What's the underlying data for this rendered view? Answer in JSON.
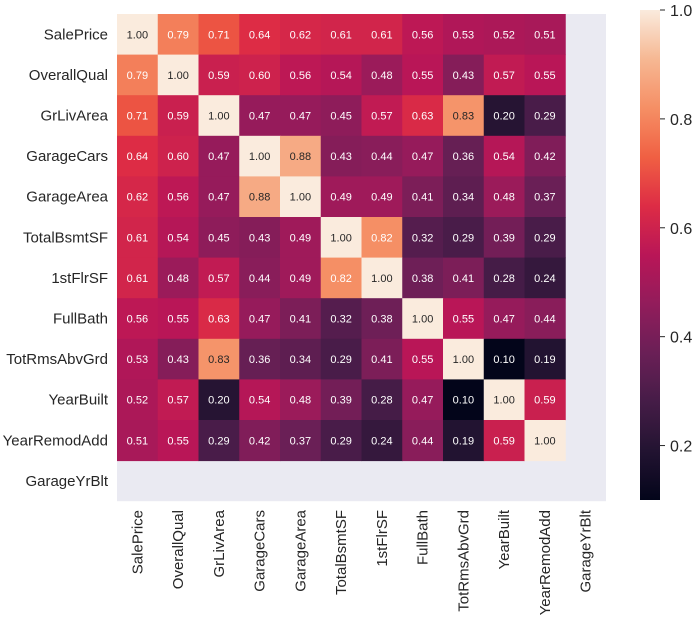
{
  "chart_data": {
    "type": "heatmap",
    "title": "",
    "colormap": "rocket",
    "vlim": [
      0.1,
      1.0
    ],
    "nan_color": "#eaeaf2",
    "colorbar_ticks": [
      "0.2",
      "0.4",
      "0.6",
      "0.8",
      "1.0"
    ],
    "colorbar_tick_values": [
      0.2,
      0.4,
      0.6,
      0.8,
      1.0
    ],
    "labels": [
      "SalePrice",
      "OverallQual",
      "GrLivArea",
      "GarageCars",
      "GarageArea",
      "TotalBsmtSF",
      "1stFlrSF",
      "FullBath",
      "TotRmsAbvGrd",
      "YearBuilt",
      "YearRemodAdd",
      "GarageYrBlt"
    ],
    "values": [
      [
        1.0,
        0.79,
        0.71,
        0.64,
        0.62,
        0.61,
        0.61,
        0.56,
        0.53,
        0.52,
        0.51,
        null
      ],
      [
        0.79,
        1.0,
        0.59,
        0.6,
        0.56,
        0.54,
        0.48,
        0.55,
        0.43,
        0.57,
        0.55,
        null
      ],
      [
        0.71,
        0.59,
        1.0,
        0.47,
        0.47,
        0.45,
        0.57,
        0.63,
        0.83,
        0.2,
        0.29,
        null
      ],
      [
        0.64,
        0.6,
        0.47,
        1.0,
        0.88,
        0.43,
        0.44,
        0.47,
        0.36,
        0.54,
        0.42,
        null
      ],
      [
        0.62,
        0.56,
        0.47,
        0.88,
        1.0,
        0.49,
        0.49,
        0.41,
        0.34,
        0.48,
        0.37,
        null
      ],
      [
        0.61,
        0.54,
        0.45,
        0.43,
        0.49,
        1.0,
        0.82,
        0.32,
        0.29,
        0.39,
        0.29,
        null
      ],
      [
        0.61,
        0.48,
        0.57,
        0.44,
        0.49,
        0.82,
        1.0,
        0.38,
        0.41,
        0.28,
        0.24,
        null
      ],
      [
        0.56,
        0.55,
        0.63,
        0.47,
        0.41,
        0.32,
        0.38,
        1.0,
        0.55,
        0.47,
        0.44,
        null
      ],
      [
        0.53,
        0.43,
        0.83,
        0.36,
        0.34,
        0.29,
        0.41,
        0.55,
        1.0,
        0.1,
        0.19,
        null
      ],
      [
        0.52,
        0.57,
        0.2,
        0.54,
        0.48,
        0.39,
        0.28,
        0.47,
        0.1,
        1.0,
        0.59,
        null
      ],
      [
        0.51,
        0.55,
        0.29,
        0.42,
        0.37,
        0.29,
        0.24,
        0.44,
        0.19,
        0.59,
        1.0,
        null
      ],
      [
        null,
        null,
        null,
        null,
        null,
        null,
        null,
        null,
        null,
        null,
        null,
        null
      ]
    ]
  }
}
